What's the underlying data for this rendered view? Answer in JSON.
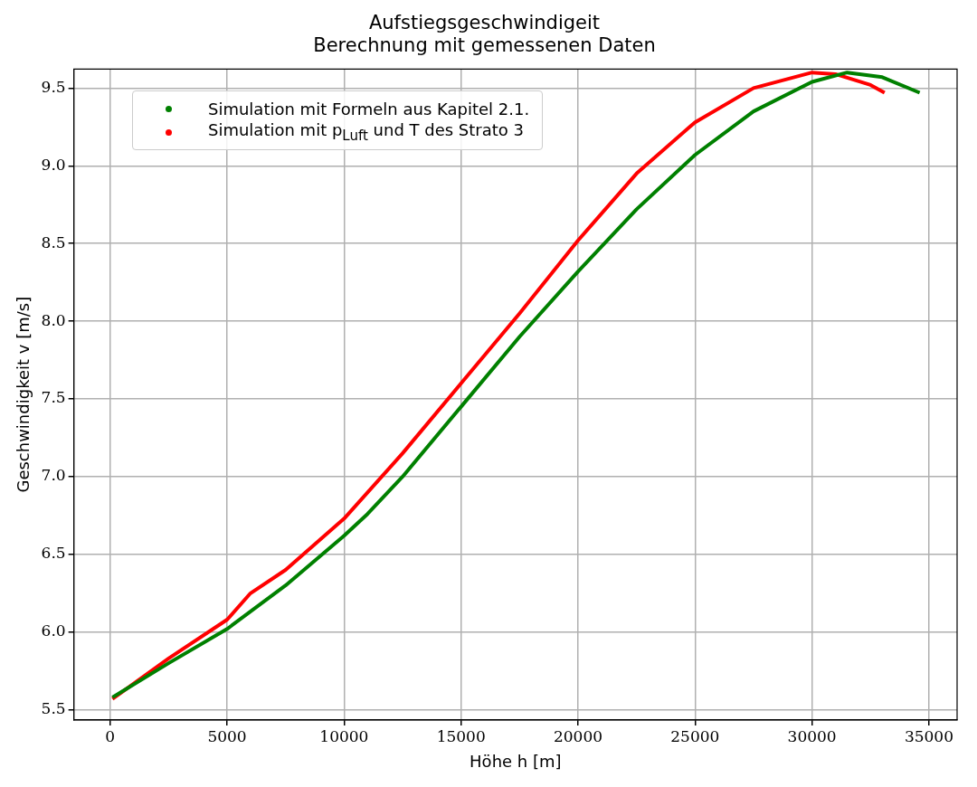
{
  "chart_data": {
    "type": "line",
    "title": "Aufstiegsgeschwindigeit",
    "subtitle": "Berechnung mit gemessenen Daten",
    "xlabel": "Höhe h [m]",
    "ylabel": "Geschwindigkeit v [m/s]",
    "xlim": [
      -1550,
      36200
    ],
    "ylim": [
      5.434,
      9.622
    ],
    "xticks": [
      0,
      5000,
      10000,
      15000,
      20000,
      25000,
      30000,
      35000
    ],
    "yticks": [
      5.5,
      {
        "value": 6,
        "label": "6.0"
      },
      6.5,
      {
        "value": 7,
        "label": "7.0"
      },
      7.5,
      {
        "value": 8,
        "label": "8.0"
      },
      8.5,
      {
        "value": 9,
        "label": "9.0"
      },
      9.5
    ],
    "grid": true,
    "legend": "top left",
    "marker": "none",
    "line_style": "solid",
    "series": [
      {
        "name": "Simulation mit Formeln aus Kapitel 2.1.",
        "color": "#008000",
        "x": [
          100,
          2500,
          5000,
          7500,
          10000,
          11000,
          12500,
          15000,
          17500,
          20000,
          22500,
          25000,
          27500,
          30000,
          31500,
          33000,
          34600
        ],
        "values": [
          5.58,
          5.8,
          6.02,
          6.3,
          6.62,
          6.76,
          7.0,
          7.45,
          7.9,
          8.32,
          8.72,
          9.07,
          9.35,
          9.54,
          9.6,
          9.57,
          9.47
        ]
      },
      {
        "name": "Simulation mit p$_{Luft}$ und T des Strato 3",
        "color": "#ff0000",
        "x": [
          100,
          2500,
          5000,
          6000,
          7500,
          10000,
          12500,
          15000,
          17500,
          20000,
          22500,
          25000,
          27500,
          30000,
          31000,
          32500,
          33100
        ],
        "values": [
          5.57,
          5.83,
          6.08,
          6.25,
          6.4,
          6.73,
          7.15,
          7.6,
          8.05,
          8.52,
          8.95,
          9.28,
          9.5,
          9.6,
          9.59,
          9.52,
          9.47
        ]
      }
    ]
  }
}
